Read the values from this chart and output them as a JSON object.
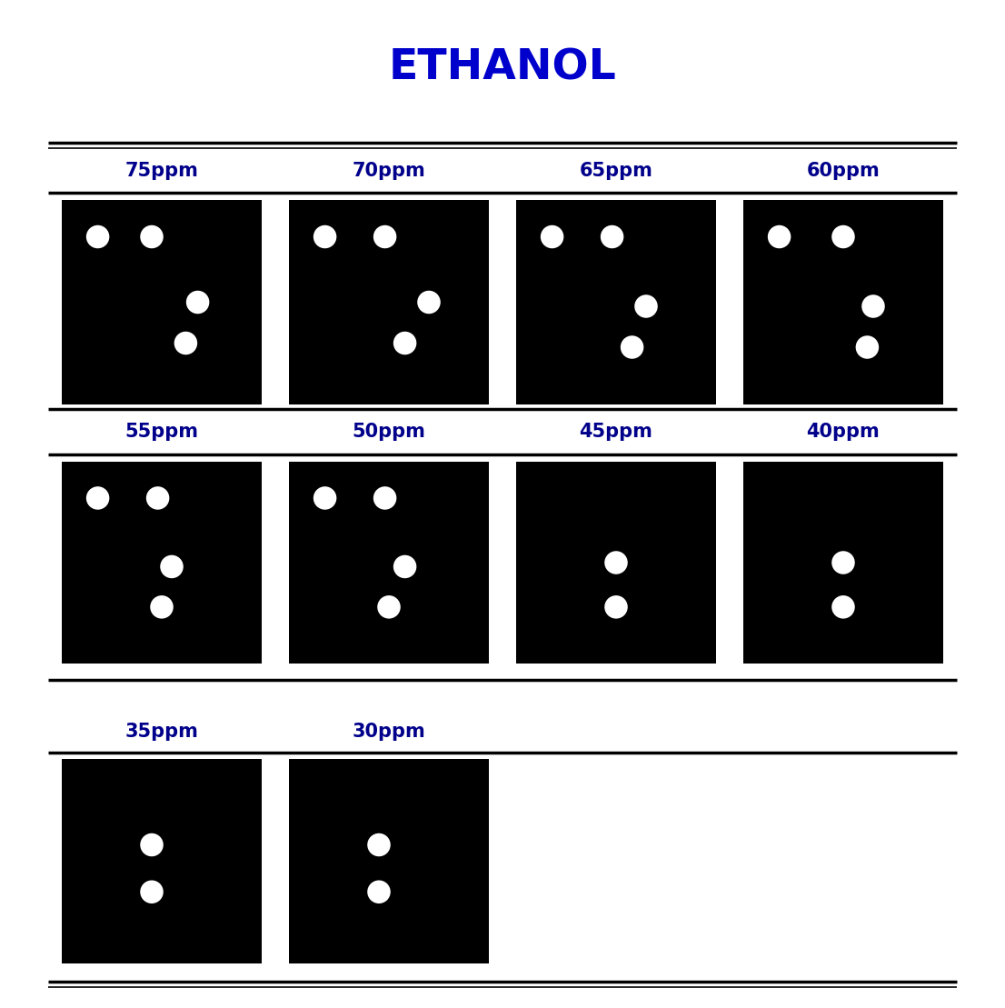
{
  "title": "ETHANOL",
  "title_color": "#0000CC",
  "title_fontsize": 34,
  "background_color": "#ffffff",
  "label_color": "#00008B",
  "label_fontsize": 15,
  "dot_color": "#ffffff",
  "line_color": "#000000",
  "rows": [
    {
      "labels": [
        "75ppm",
        "70ppm",
        "65ppm",
        "60ppm"
      ],
      "ncols": 4,
      "dots": [
        [
          [
            0.62,
            0.7
          ],
          [
            0.68,
            0.5
          ],
          [
            0.18,
            0.18
          ],
          [
            0.45,
            0.18
          ]
        ],
        [
          [
            0.58,
            0.7
          ],
          [
            0.7,
            0.5
          ],
          [
            0.18,
            0.18
          ],
          [
            0.48,
            0.18
          ]
        ],
        [
          [
            0.58,
            0.72
          ],
          [
            0.65,
            0.52
          ],
          [
            0.18,
            0.18
          ],
          [
            0.48,
            0.18
          ]
        ],
        [
          [
            0.62,
            0.72
          ],
          [
            0.65,
            0.52
          ],
          [
            0.18,
            0.18
          ],
          [
            0.5,
            0.18
          ]
        ]
      ]
    },
    {
      "labels": [
        "55ppm",
        "50ppm",
        "45ppm",
        "40ppm"
      ],
      "ncols": 4,
      "dots": [
        [
          [
            0.5,
            0.72
          ],
          [
            0.55,
            0.52
          ],
          [
            0.18,
            0.18
          ],
          [
            0.48,
            0.18
          ]
        ],
        [
          [
            0.5,
            0.72
          ],
          [
            0.58,
            0.52
          ],
          [
            0.18,
            0.18
          ],
          [
            0.48,
            0.18
          ]
        ],
        [
          [
            0.5,
            0.72
          ],
          [
            0.5,
            0.5
          ]
        ],
        [
          [
            0.5,
            0.72
          ],
          [
            0.5,
            0.5
          ]
        ]
      ]
    },
    {
      "labels": [
        "35ppm",
        "30ppm"
      ],
      "ncols": 4,
      "dots": [
        [
          [
            0.45,
            0.65
          ],
          [
            0.45,
            0.42
          ]
        ],
        [
          [
            0.45,
            0.65
          ],
          [
            0.45,
            0.42
          ]
        ]
      ]
    }
  ]
}
